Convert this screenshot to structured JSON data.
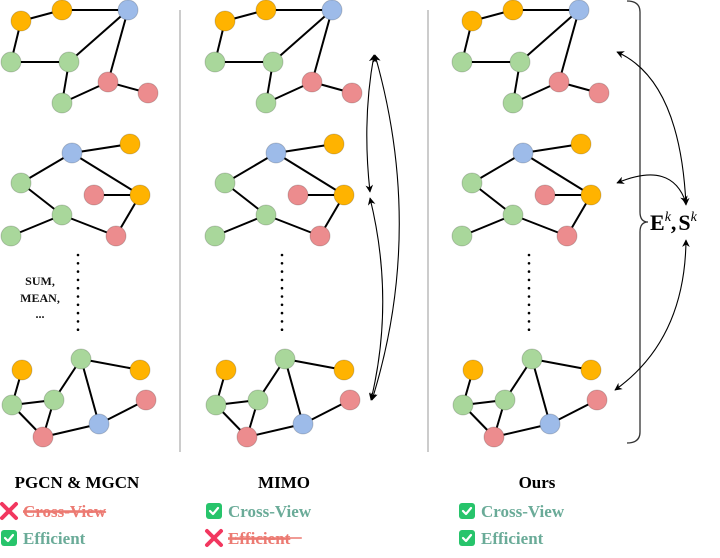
{
  "panels": [
    {
      "title": "PGCN & MGCN",
      "features": [
        {
          "label": "Cross-View",
          "status": "cross"
        },
        {
          "label": "Efficient",
          "status": "check"
        }
      ]
    },
    {
      "title": "MIMO",
      "features": [
        {
          "label": "Cross-View",
          "status": "check"
        },
        {
          "label": "Efficient",
          "status": "cross"
        }
      ]
    },
    {
      "title": "Ours",
      "features": [
        {
          "label": "Cross-View",
          "status": "check"
        },
        {
          "label": "Efficient",
          "status": "check"
        }
      ]
    }
  ],
  "aggregation_label": {
    "line1": "SUM,",
    "line2": "MEAN,",
    "line3": "..."
  },
  "shared_label": {
    "e": "E",
    "comma": ",",
    "s": "S",
    "sup": "k"
  },
  "colors": {
    "orange": "#ffb300",
    "green": "#a9d79b",
    "blue": "#9dbbe9",
    "red": "#ec8c8e",
    "check": "#27c46b",
    "cross": "#f2375f",
    "ok_text": "#6aab98",
    "bad_text": "#ec7a72"
  }
}
